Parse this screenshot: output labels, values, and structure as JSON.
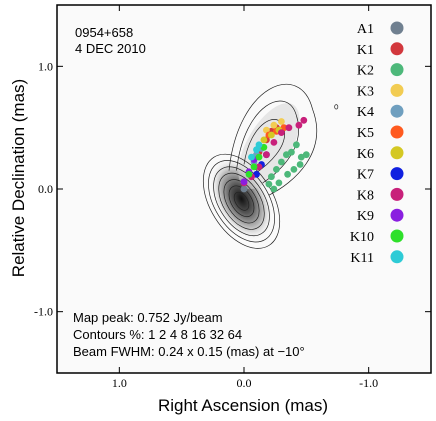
{
  "chart_data": {
    "type": "scatter",
    "title": "0954+658",
    "subtitle": "4 DEC 2010",
    "xlabel": "Right Ascension  (mas)",
    "ylabel": "Relative Declination  (mas)",
    "xlim": [
      1.5,
      -1.5
    ],
    "ylim": [
      -1.5,
      1.5
    ],
    "x_ticks": [
      1.0,
      0.0,
      -1.0
    ],
    "x_tick_labels": [
      "1.0",
      "0.0",
      "-1.0"
    ],
    "y_ticks": [
      1.0,
      0.0,
      -1.0
    ],
    "y_tick_labels": [
      "1.0",
      "0.0",
      "-1.0"
    ],
    "grid": false,
    "legend_position": "right",
    "annotations": {
      "map_peak": "Map peak: 0.752 Jy/beam",
      "contours": "Contours %:  1  2  4  8  16  32  64",
      "beam": "Beam FWHM: 0.24 x 0.15 (mas) at −10°"
    },
    "series": [
      {
        "name": "A1",
        "color": "#708090",
        "points": [
          [
            0.0,
            0.0
          ]
        ]
      },
      {
        "name": "K1",
        "color": "#d2383d",
        "points": [
          [
            -0.12,
            0.3
          ],
          [
            -0.18,
            0.4
          ],
          [
            -0.22,
            0.47
          ],
          [
            -0.26,
            0.5
          ]
        ]
      },
      {
        "name": "K2",
        "color": "#4db87a",
        "points": [
          [
            -0.22,
            0.1
          ],
          [
            -0.26,
            0.16
          ],
          [
            -0.3,
            0.22
          ],
          [
            -0.34,
            0.28
          ],
          [
            -0.38,
            0.3
          ],
          [
            -0.42,
            0.36
          ],
          [
            -0.46,
            0.26
          ],
          [
            -0.5,
            0.28
          ],
          [
            -0.45,
            0.2
          ],
          [
            -0.4,
            0.16
          ],
          [
            -0.35,
            0.12
          ],
          [
            -0.28,
            0.05
          ],
          [
            -0.24,
            0.0
          ],
          [
            -0.2,
            0.04
          ]
        ]
      },
      {
        "name": "K3",
        "color": "#f2cc52",
        "points": [
          [
            -0.18,
            0.48
          ],
          [
            -0.24,
            0.52
          ],
          [
            -0.3,
            0.55
          ]
        ]
      },
      {
        "name": "K4",
        "color": "#6f9fbf",
        "points": [
          [
            -0.08,
            0.22
          ],
          [
            -0.1,
            0.28
          ],
          [
            -0.14,
            0.33
          ]
        ]
      },
      {
        "name": "K5",
        "color": "#ff5a1f",
        "points": [
          [
            -0.2,
            0.44
          ],
          [
            -0.26,
            0.47
          ],
          [
            -0.32,
            0.5
          ]
        ]
      },
      {
        "name": "K6",
        "color": "#d4c823",
        "points": [
          [
            -0.16,
            0.4
          ],
          [
            -0.22,
            0.44
          ],
          [
            -0.28,
            0.48
          ]
        ]
      },
      {
        "name": "K7",
        "color": "#1020e0",
        "points": [
          [
            -0.1,
            0.12
          ],
          [
            -0.14,
            0.2
          ],
          [
            -0.18,
            0.28
          ]
        ]
      },
      {
        "name": "K8",
        "color": "#c8207a",
        "points": [
          [
            0.0,
            0.05
          ],
          [
            -0.06,
            0.1
          ],
          [
            -0.12,
            0.18
          ],
          [
            -0.18,
            0.28
          ],
          [
            -0.24,
            0.38
          ],
          [
            -0.3,
            0.46
          ],
          [
            -0.36,
            0.5
          ],
          [
            -0.44,
            0.52
          ],
          [
            -0.48,
            0.56
          ]
        ]
      },
      {
        "name": "K9",
        "color": "#8a1ee0",
        "points": [
          [
            0.0,
            0.06
          ],
          [
            -0.04,
            0.14
          ],
          [
            -0.08,
            0.24
          ]
        ]
      },
      {
        "name": "K10",
        "color": "#2ee02a",
        "points": [
          [
            -0.04,
            0.12
          ],
          [
            -0.08,
            0.18
          ],
          [
            -0.12,
            0.26
          ],
          [
            -0.16,
            0.34
          ]
        ]
      },
      {
        "name": "K11",
        "color": "#2ecbd6",
        "points": [
          [
            -0.06,
            0.26
          ],
          [
            -0.1,
            0.32
          ],
          [
            -0.12,
            0.36
          ]
        ]
      }
    ]
  }
}
